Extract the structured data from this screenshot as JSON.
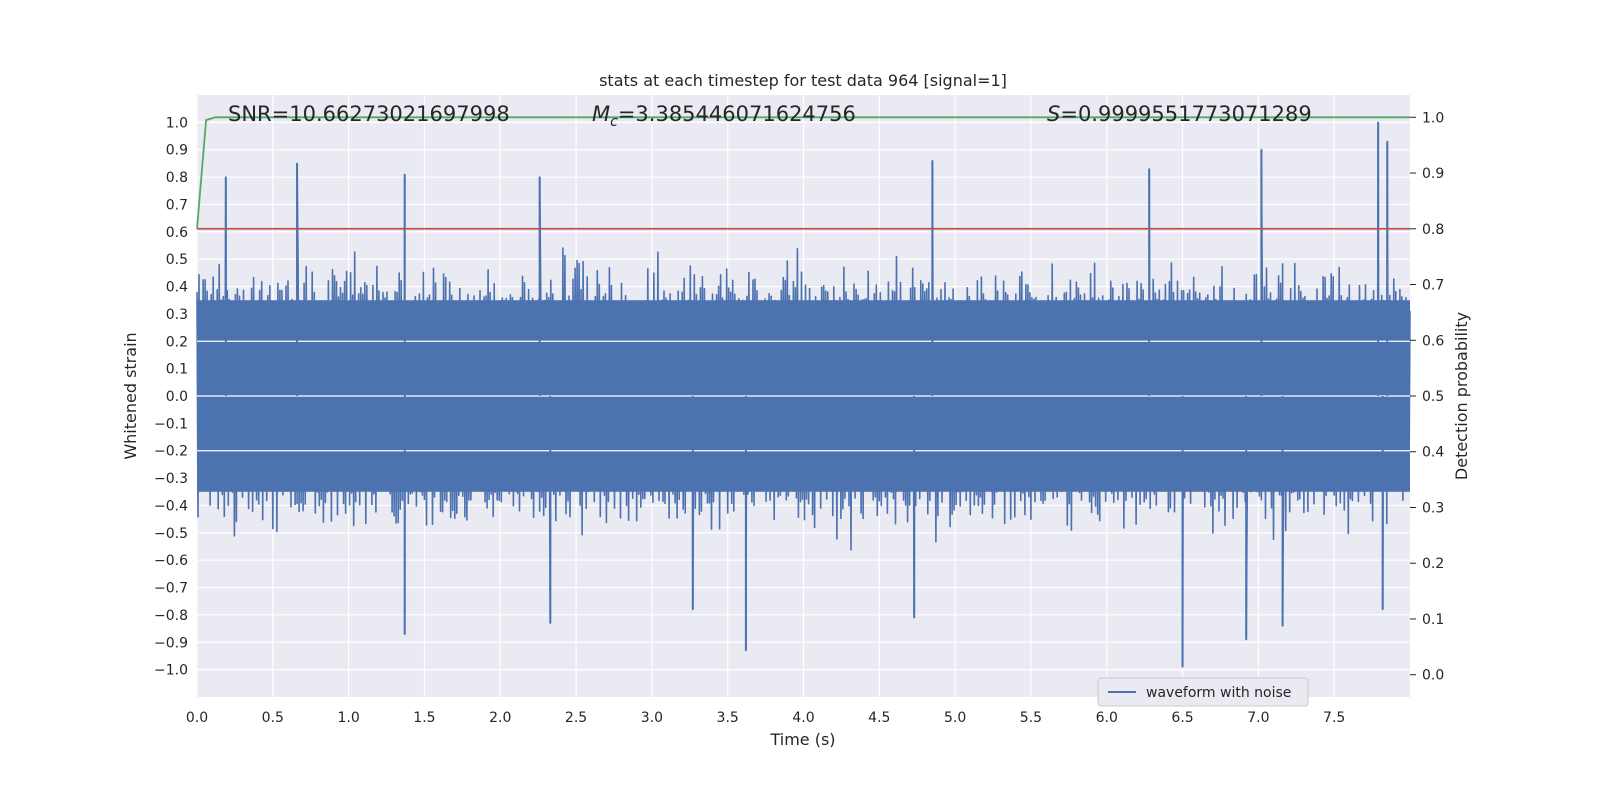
{
  "chart_data": {
    "type": "line",
    "title": "stats at each timestep for test data 964 [signal=1]",
    "xlabel": "Time (s)",
    "ylabel": "Whitened strain",
    "y2label": "Detection probability",
    "xlim": [
      0.0,
      8.0
    ],
    "ylim": [
      -1.1,
      1.1
    ],
    "y2lim": [
      -0.04,
      1.04
    ],
    "x_ticks": [
      "0.0",
      "0.5",
      "1.0",
      "1.5",
      "2.0",
      "2.5",
      "3.0",
      "3.5",
      "4.0",
      "4.5",
      "5.0",
      "5.5",
      "6.0",
      "6.5",
      "7.0",
      "7.5"
    ],
    "x_tick_values": [
      0.0,
      0.5,
      1.0,
      1.5,
      2.0,
      2.5,
      3.0,
      3.5,
      4.0,
      4.5,
      5.0,
      5.5,
      6.0,
      6.5,
      7.0,
      7.5
    ],
    "y_ticks": [
      "1.0",
      "0.9",
      "0.8",
      "0.7",
      "0.6",
      "0.5",
      "0.4",
      "0.3",
      "0.2",
      "0.1",
      "0.0",
      "−0.1",
      "−0.2",
      "−0.3",
      "−0.4",
      "−0.5",
      "−0.6",
      "−0.7",
      "−0.8",
      "−0.9",
      "−1.0"
    ],
    "y_tick_values": [
      1.0,
      0.9,
      0.8,
      0.7,
      0.6,
      0.5,
      0.4,
      0.3,
      0.2,
      0.1,
      0.0,
      -0.1,
      -0.2,
      -0.3,
      -0.4,
      -0.5,
      -0.6,
      -0.7,
      -0.8,
      -0.9,
      -1.0
    ],
    "y2_ticks": [
      "1.0",
      "0.9",
      "0.8",
      "0.7",
      "0.6",
      "0.5",
      "0.4",
      "0.3",
      "0.2",
      "0.1",
      "0.0"
    ],
    "y2_tick_values": [
      1.0,
      0.9,
      0.8,
      0.7,
      0.6,
      0.5,
      0.4,
      0.3,
      0.2,
      0.1,
      0.0
    ],
    "stats": {
      "snr": "SNR=10.66273021697998",
      "mc_prefix": "M",
      "mc_sub": "c",
      "mc_value": "=3.385446071624756",
      "s_prefix": "S",
      "s_value": "=0.9999551773071289"
    },
    "threshold": {
      "value": 0.8,
      "axis": "y2",
      "color": "#c44e52"
    },
    "detection_probability": {
      "name": "detection probability",
      "color": "#55a868",
      "x": [
        0.0,
        0.06,
        0.12,
        0.5,
        1.0,
        2.0,
        4.0,
        6.0,
        8.0
      ],
      "y": [
        0.8,
        0.995,
        1.0,
        1.0,
        1.0,
        1.0,
        1.0,
        1.0,
        1.0
      ]
    },
    "waveform": {
      "name": "waveform with noise",
      "color": "#4c72b0",
      "duration_s": 8.0,
      "typical_positive_envelope": 0.45,
      "typical_negative_envelope": -0.45,
      "notable_peaks": [
        {
          "x": 0.19,
          "y": 0.8
        },
        {
          "x": 0.66,
          "y": 0.85
        },
        {
          "x": 1.37,
          "y": 0.81
        },
        {
          "x": 2.26,
          "y": 0.8
        },
        {
          "x": 4.85,
          "y": 0.86
        },
        {
          "x": 6.28,
          "y": 0.83
        },
        {
          "x": 7.02,
          "y": 0.9
        },
        {
          "x": 7.79,
          "y": 1.0
        },
        {
          "x": 7.85,
          "y": 0.93
        }
      ],
      "notable_troughs": [
        {
          "x": 1.37,
          "y": -0.87
        },
        {
          "x": 2.33,
          "y": -0.83
        },
        {
          "x": 3.27,
          "y": -0.78
        },
        {
          "x": 3.62,
          "y": -0.93
        },
        {
          "x": 4.73,
          "y": -0.81
        },
        {
          "x": 6.5,
          "y": -0.99
        },
        {
          "x": 6.92,
          "y": -0.89
        },
        {
          "x": 7.16,
          "y": -0.84
        },
        {
          "x": 7.82,
          "y": -0.78
        }
      ]
    },
    "legend": {
      "location": "lower-right",
      "entries": [
        "waveform with noise"
      ]
    },
    "grid": true,
    "background": "#eaeaf2"
  }
}
